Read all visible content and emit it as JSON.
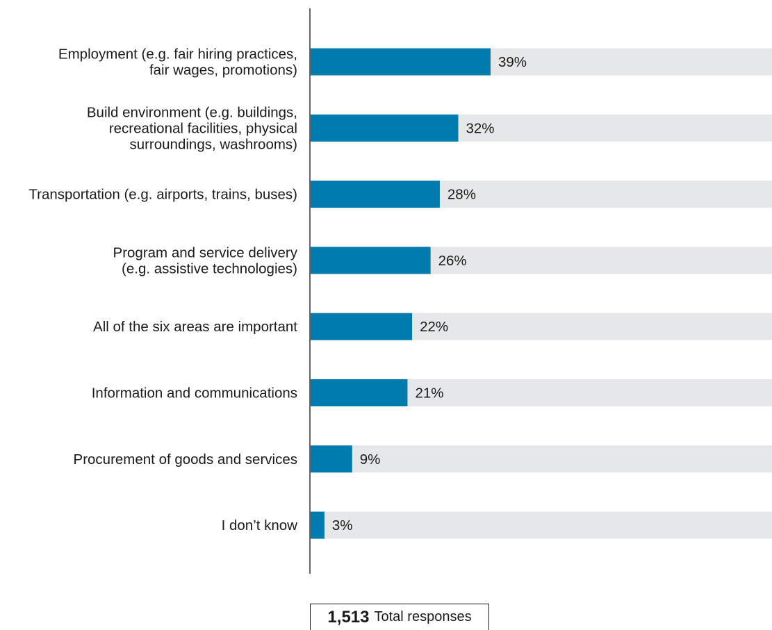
{
  "chart_data": {
    "type": "bar",
    "orientation": "horizontal",
    "categories": [
      [
        "Employment (e.g. fair hiring practices,",
        "fair wages, promotions)"
      ],
      [
        "Build environment (e.g. buildings,",
        "recreational facilities, physical",
        "surroundings, washrooms)"
      ],
      [
        "Transportation (e.g. airports, trains, buses)"
      ],
      [
        "Program and service delivery",
        "(e.g. assistive technologies)"
      ],
      [
        "All of the six areas are important"
      ],
      [
        "Information and communications"
      ],
      [
        "Procurement of goods and services"
      ],
      [
        "I don’t know"
      ]
    ],
    "values": [
      39,
      32,
      28,
      26,
      22,
      21,
      9,
      3
    ],
    "value_suffix": "%",
    "xlim": [
      0,
      100
    ],
    "grid": false,
    "colors": {
      "bar": "#007bad",
      "track": "#e6e7e8",
      "axis": "#333333"
    }
  },
  "total": {
    "number": "1,513",
    "label": "Total responses"
  }
}
